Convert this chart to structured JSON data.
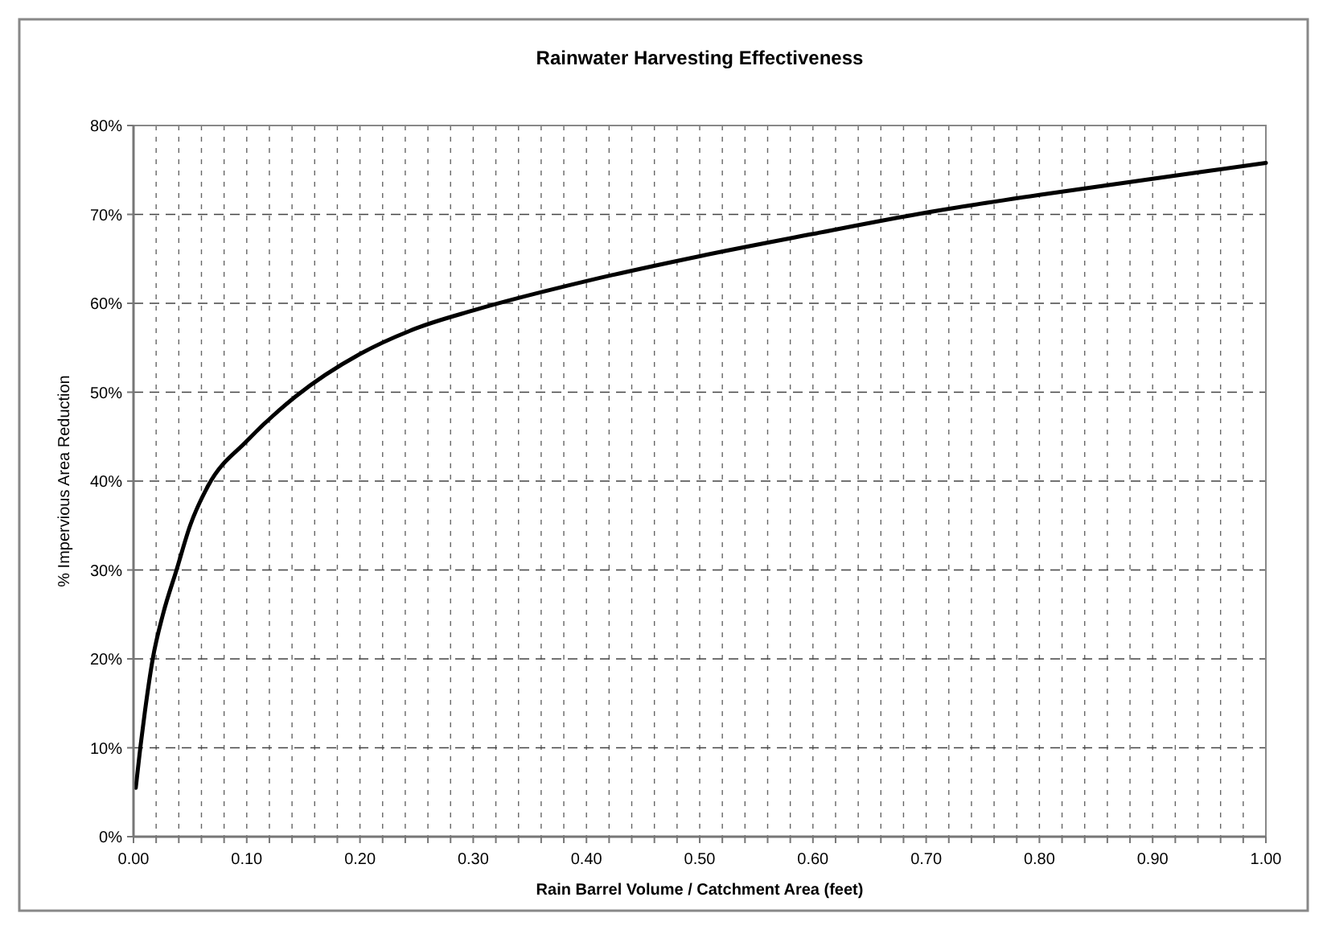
{
  "chart_data": {
    "type": "line",
    "title": "Rainwater Harvesting Effectiveness",
    "xlabel": "Rain Barrel Volume / Catchment Area (feet)",
    "ylabel": "% Impervious Area Reduction",
    "series": [
      {
        "color": "#000000",
        "x": [
          0.002,
          0.006,
          0.01,
          0.017,
          0.026,
          0.038,
          0.05,
          0.066,
          0.1,
          0.143,
          0.2,
          0.25,
          0.3,
          0.4,
          0.5,
          0.6,
          0.7,
          0.8,
          0.9,
          1.0
        ],
        "values": [
          5.5,
          10,
          14,
          20,
          25,
          30,
          35,
          39.5,
          44.5,
          49.5,
          54.3,
          57.2,
          59.2,
          62.5,
          65.3,
          67.8,
          70.2,
          72.2,
          74,
          75.8
        ]
      }
    ],
    "xlim": [
      0,
      1
    ],
    "xticks": [
      {
        "value": 0,
        "label": "0.00"
      },
      {
        "value": 0.02,
        "label": null
      },
      {
        "value": 0.04,
        "label": null
      },
      {
        "value": 0.06,
        "label": null
      },
      {
        "value": 0.08,
        "label": null
      },
      {
        "value": 0.1,
        "label": "0.10"
      },
      {
        "value": 0.12,
        "label": null
      },
      {
        "value": 0.14,
        "label": null
      },
      {
        "value": 0.16,
        "label": null
      },
      {
        "value": 0.18,
        "label": null
      },
      {
        "value": 0.2,
        "label": "0.20"
      },
      {
        "value": 0.22,
        "label": null
      },
      {
        "value": 0.24,
        "label": null
      },
      {
        "value": 0.26,
        "label": null
      },
      {
        "value": 0.28,
        "label": null
      },
      {
        "value": 0.3,
        "label": "0.30"
      },
      {
        "value": 0.32,
        "label": null
      },
      {
        "value": 0.34,
        "label": null
      },
      {
        "value": 0.36,
        "label": null
      },
      {
        "value": 0.38,
        "label": null
      },
      {
        "value": 0.4,
        "label": "0.40"
      },
      {
        "value": 0.42,
        "label": null
      },
      {
        "value": 0.44,
        "label": null
      },
      {
        "value": 0.46,
        "label": null
      },
      {
        "value": 0.48,
        "label": null
      },
      {
        "value": 0.5,
        "label": "0.50"
      },
      {
        "value": 0.52,
        "label": null
      },
      {
        "value": 0.54,
        "label": null
      },
      {
        "value": 0.56,
        "label": null
      },
      {
        "value": 0.58,
        "label": null
      },
      {
        "value": 0.6,
        "label": "0.60"
      },
      {
        "value": 0.62,
        "label": null
      },
      {
        "value": 0.64,
        "label": null
      },
      {
        "value": 0.66,
        "label": null
      },
      {
        "value": 0.68,
        "label": null
      },
      {
        "value": 0.7,
        "label": "0.70"
      },
      {
        "value": 0.72,
        "label": null
      },
      {
        "value": 0.74,
        "label": null
      },
      {
        "value": 0.76,
        "label": null
      },
      {
        "value": 0.78,
        "label": null
      },
      {
        "value": 0.8,
        "label": "0.80"
      },
      {
        "value": 0.82,
        "label": null
      },
      {
        "value": 0.84,
        "label": null
      },
      {
        "value": 0.86,
        "label": null
      },
      {
        "value": 0.88,
        "label": null
      },
      {
        "value": 0.9,
        "label": "0.90"
      },
      {
        "value": 0.92,
        "label": null
      },
      {
        "value": 0.94,
        "label": null
      },
      {
        "value": 0.96,
        "label": null
      },
      {
        "value": 0.98,
        "label": null
      },
      {
        "value": 1,
        "label": "1.00"
      }
    ],
    "ylim": [
      0,
      80
    ],
    "yticks": [
      {
        "value": 0,
        "label": "0%"
      },
      {
        "value": 10,
        "label": "10%"
      },
      {
        "value": 20,
        "label": "20%"
      },
      {
        "value": 30,
        "label": "30%"
      },
      {
        "value": 40,
        "label": "40%"
      },
      {
        "value": 50,
        "label": "50%"
      },
      {
        "value": 60,
        "label": "60%"
      },
      {
        "value": 70,
        "label": "70%"
      },
      {
        "value": 80,
        "label": "80%"
      }
    ],
    "grid": true,
    "marker": "none",
    "line_style": "solid"
  }
}
